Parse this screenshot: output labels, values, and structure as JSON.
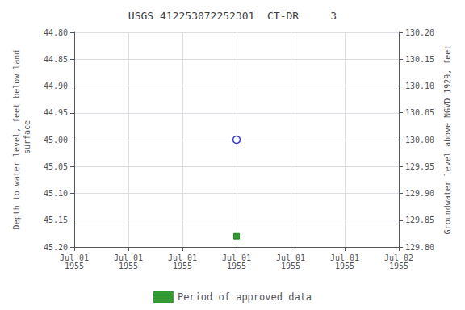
{
  "chart_data": {
    "type": "scatter",
    "title": "USGS 412253072252301  CT-DR     3",
    "categories": [
      "Jul 01\n1955",
      "Jul 01\n1955",
      "Jul 01\n1955",
      "Jul 01\n1955",
      "Jul 01\n1955",
      "Jul 01\n1955",
      "Jul 02\n1955"
    ],
    "ylabel": "Depth to water level, feet below land\n surface",
    "y2label": "Groundwater level above NGVD 1929, feet",
    "series": [
      {
        "color": "#0000cc",
        "marker": "open circle",
        "values": [
          null,
          null,
          null,
          45.0,
          null,
          null,
          null
        ]
      },
      {
        "name": "Period of approved data",
        "color": "#008000",
        "marker": "square",
        "values": [
          null,
          null,
          null,
          45.18,
          null,
          null,
          null
        ]
      }
    ],
    "ylim": [
      45.2,
      44.8
    ],
    "yticks": [
      {
        "value": 44.8,
        "label": "44.80"
      },
      {
        "value": 44.85,
        "label": "44.85"
      },
      {
        "value": 44.9,
        "label": "44.90"
      },
      {
        "value": 44.95,
        "label": "44.95"
      },
      {
        "value": 45.0,
        "label": "45.00"
      },
      {
        "value": 45.05,
        "label": "45.05"
      },
      {
        "value": 45.1,
        "label": "45.10"
      },
      {
        "value": 45.15,
        "label": "45.15"
      },
      {
        "value": 45.2,
        "label": "45.20"
      }
    ],
    "y2lim": [
      129.8,
      130.2
    ],
    "y2ticks": [
      {
        "value": 130.2,
        "label": "130.20"
      },
      {
        "value": 130.15,
        "label": "130.15"
      },
      {
        "value": 130.1,
        "label": "130.10"
      },
      {
        "value": 130.05,
        "label": "130.05"
      },
      {
        "value": 130.0,
        "label": "130.00"
      },
      {
        "value": 129.95,
        "label": "129.95"
      },
      {
        "value": 129.9,
        "label": "129.90"
      },
      {
        "value": 129.85,
        "label": "129.85"
      },
      {
        "value": 129.8,
        "label": "129.80"
      }
    ],
    "grid": true,
    "legend": "bottom"
  }
}
